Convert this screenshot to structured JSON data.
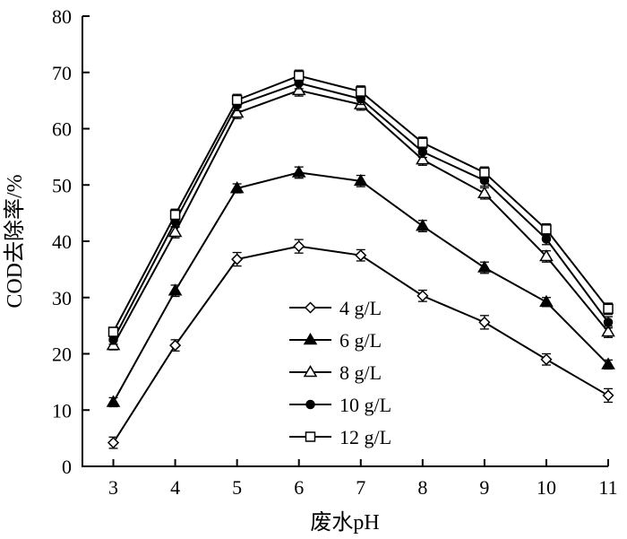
{
  "chart_data": {
    "type": "line",
    "title": "",
    "xlabel": "废水pH",
    "ylabel": "COD去除率/%",
    "x": [
      3,
      4,
      5,
      6,
      7,
      8,
      9,
      10,
      11
    ],
    "xlim": [
      2.5,
      11
    ],
    "ylim": [
      0,
      80
    ],
    "yticks": [
      0,
      10,
      20,
      30,
      40,
      50,
      60,
      70,
      80
    ],
    "grid": false,
    "legend_position": "center-bottom",
    "series": [
      {
        "name": "4 g/L",
        "marker": "open-diamond",
        "values": [
          4.2,
          21.5,
          36.8,
          39.1,
          37.5,
          30.3,
          25.6,
          19.0,
          12.6
        ],
        "errors": [
          1.0,
          1.0,
          1.2,
          1.2,
          1.0,
          1.0,
          1.2,
          1.0,
          1.2
        ]
      },
      {
        "name": "6 g/L",
        "marker": "filled-triangle",
        "values": [
          11.4,
          31.2,
          49.4,
          52.2,
          50.7,
          42.7,
          35.3,
          29.2,
          18.1
        ],
        "errors": [
          0.8,
          1.0,
          0.8,
          1.0,
          1.0,
          1.0,
          1.0,
          0.8,
          0.8
        ]
      },
      {
        "name": "8 g/L",
        "marker": "open-triangle",
        "values": [
          21.5,
          41.6,
          62.8,
          66.8,
          64.3,
          54.5,
          48.5,
          37.3,
          23.9
        ],
        "errors": [
          0.8,
          1.0,
          1.0,
          1.0,
          1.0,
          1.0,
          1.0,
          1.0,
          1.0
        ]
      },
      {
        "name": "10 g/L",
        "marker": "filled-circle",
        "values": [
          22.5,
          43.5,
          64.2,
          68.1,
          65.3,
          55.9,
          50.8,
          40.4,
          25.6
        ],
        "errors": [
          0.8,
          1.0,
          1.0,
          1.0,
          1.0,
          1.0,
          1.0,
          1.0,
          1.0
        ]
      },
      {
        "name": "12 g/L",
        "marker": "open-square",
        "values": [
          23.9,
          44.7,
          65.1,
          69.4,
          66.6,
          57.5,
          52.2,
          42.1,
          28.0
        ],
        "errors": [
          0.8,
          1.0,
          1.0,
          1.0,
          1.0,
          1.0,
          1.0,
          1.0,
          1.0
        ]
      }
    ]
  }
}
